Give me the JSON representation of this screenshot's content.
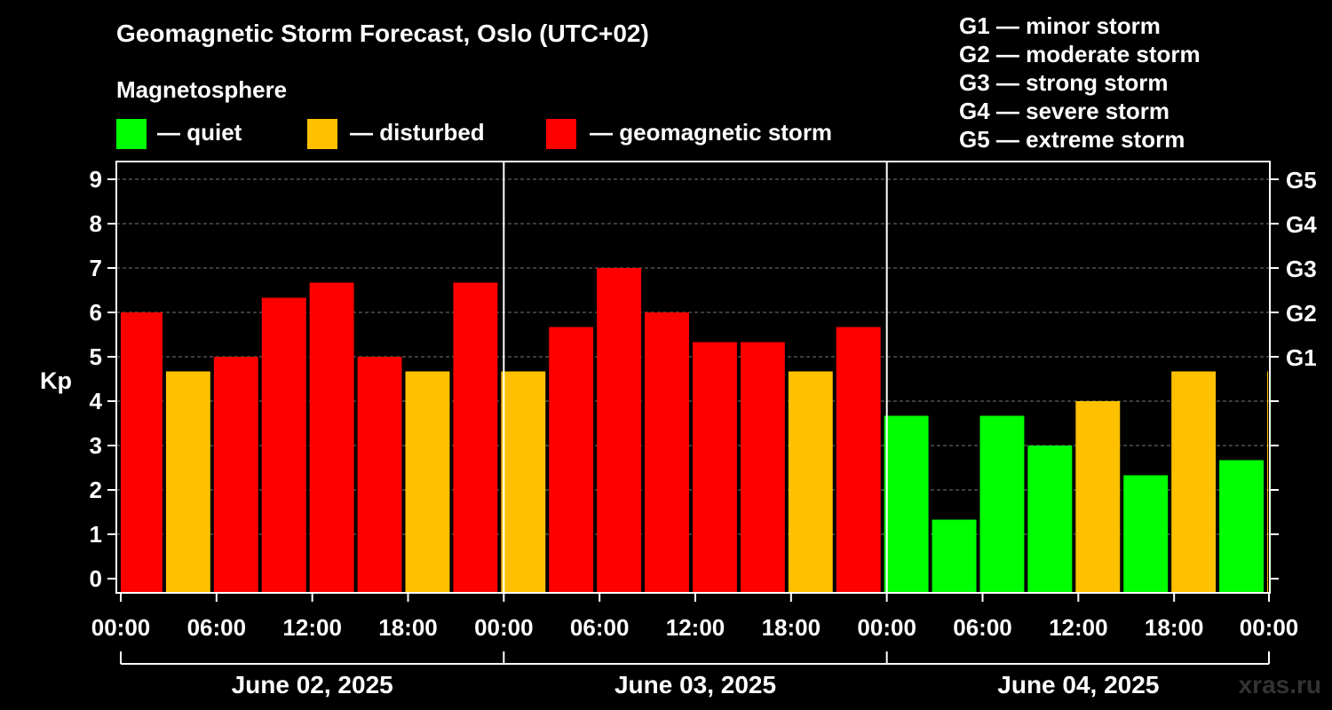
{
  "title": "Geomagnetic Storm Forecast, Oslo (UTC+02)",
  "legend": {
    "heading": "Magnetosphere",
    "items": [
      {
        "label": "— quiet",
        "color": "#00ff00"
      },
      {
        "label": "— disturbed",
        "color": "#ffc000"
      },
      {
        "label": "— geomagnetic storm",
        "color": "#ff0000"
      }
    ]
  },
  "g_levels": [
    {
      "label": "G1 — minor storm"
    },
    {
      "label": "G2 — moderate storm"
    },
    {
      "label": "G3 — strong storm"
    },
    {
      "label": "G4 — severe storm"
    },
    {
      "label": "G5 — extreme storm"
    }
  ],
  "watermark": "xras.ru",
  "chart_data": {
    "type": "bar",
    "title": "Geomagnetic Storm Forecast, Oslo (UTC+02)",
    "ylabel": "Kp",
    "ylim": [
      0,
      9
    ],
    "yticks": [
      "0",
      "1",
      "2",
      "3",
      "4",
      "5",
      "6",
      "7",
      "8",
      "9"
    ],
    "right_ticks": [
      {
        "kp": 5,
        "label": "G1"
      },
      {
        "kp": 6,
        "label": "G2"
      },
      {
        "kp": 7,
        "label": "G3"
      },
      {
        "kp": 8,
        "label": "G4"
      },
      {
        "kp": 9,
        "label": "G5"
      }
    ],
    "x_tick_labels": [
      "00:00",
      "06:00",
      "12:00",
      "18:00",
      "00:00",
      "06:00",
      "12:00",
      "18:00",
      "00:00",
      "06:00",
      "12:00",
      "18:00",
      "00:00"
    ],
    "date_labels": [
      "June 02, 2025",
      "June 03, 2025",
      "June 04, 2025"
    ],
    "interval_hours": 3,
    "values": [
      6.0,
      4.67,
      5.0,
      6.33,
      6.67,
      5.0,
      4.67,
      6.67,
      4.67,
      5.67,
      7.0,
      6.0,
      5.33,
      5.33,
      4.67,
      5.67,
      3.67,
      1.33,
      3.67,
      3.0,
      4.0,
      2.33,
      4.67,
      2.67,
      4.67
    ],
    "colors": {
      "quiet": "#00ff00",
      "disturbed": "#ffc000",
      "storm": "#ff0000"
    },
    "grid": "dashed horizontal"
  }
}
